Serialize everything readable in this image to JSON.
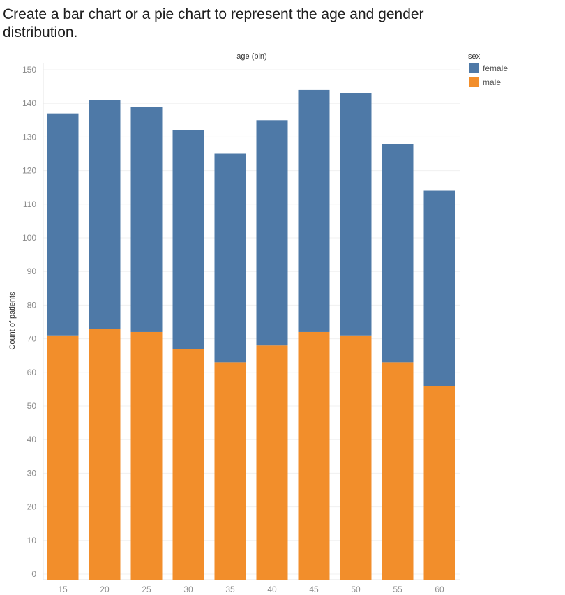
{
  "title": "Create a bar chart or a pie chart to represent the age and gender distribution.",
  "chart_data": {
    "type": "bar",
    "stacked": true,
    "title": "age (bin)",
    "xlabel": "",
    "ylabel": "Count of patients",
    "categories": [
      "15",
      "20",
      "25",
      "30",
      "35",
      "40",
      "45",
      "50",
      "55",
      "60"
    ],
    "series": [
      {
        "name": "male",
        "color": "#f28e2b",
        "values": [
          71,
          73,
          72,
          67,
          63,
          68,
          72,
          71,
          63,
          56
        ]
      },
      {
        "name": "female",
        "color": "#4e79a7",
        "values": [
          66,
          68,
          67,
          65,
          62,
          67,
          72,
          72,
          65,
          58
        ]
      }
    ],
    "ylim": [
      0,
      150
    ],
    "yticks": [
      0,
      10,
      20,
      30,
      40,
      50,
      60,
      70,
      80,
      90,
      100,
      110,
      120,
      130,
      140,
      150
    ],
    "grid": true,
    "legend": {
      "title": "sex",
      "position": "top-right",
      "entries": [
        {
          "label": "female",
          "color": "#4e79a7"
        },
        {
          "label": "male",
          "color": "#f28e2b"
        }
      ]
    }
  }
}
